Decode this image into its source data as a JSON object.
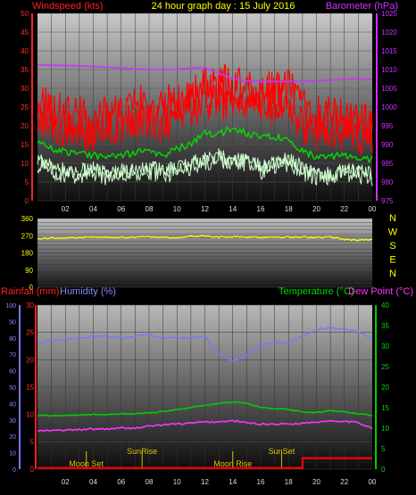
{
  "title": "24 hour graph day : 15 July 2016",
  "colors": {
    "wind_avg": "#00dd00",
    "wind_gust": "#ff0000",
    "wind_low": "#cfffcf",
    "barometer": "#cc33ff",
    "direction": "#ffff00",
    "humidity": "#7777ff",
    "temperature": "#00cc00",
    "dewpoint": "#ff33ff",
    "rainfall": "#ff0000",
    "bg_top": "#c8c8c8",
    "bg_bottom": "#101010"
  },
  "chart_data": [
    {
      "type": "line",
      "panel": "wind",
      "ylabel_left": "Windspeed (kts)",
      "ylabel_right": "Barometer (hPa)",
      "ylim": [
        0,
        50
      ],
      "y2lim": [
        975,
        1025
      ],
      "yticks": [
        "0",
        "5",
        "10",
        "15",
        "20",
        "25",
        "30",
        "35",
        "40",
        "45",
        "50"
      ],
      "y2ticks": [
        "975",
        "980",
        "985",
        "990",
        "995",
        "1000",
        "1005",
        "1010",
        "1015",
        "1020",
        "1025"
      ],
      "x_hours": [
        0,
        1,
        2,
        3,
        4,
        5,
        6,
        7,
        8,
        9,
        10,
        11,
        12,
        13,
        14,
        15,
        16,
        17,
        18,
        19,
        20,
        21,
        22,
        23,
        24
      ],
      "xticks": [
        "02",
        "04",
        "06",
        "08",
        "10",
        "12",
        "14",
        "16",
        "18",
        "20",
        "22",
        "00"
      ],
      "series": [
        {
          "name": "Windspeed (kts) gust",
          "values": [
            27,
            24,
            23,
            22,
            21,
            23,
            24,
            25,
            26,
            24,
            27,
            28,
            30,
            30,
            31,
            30,
            29,
            29,
            30,
            24,
            22,
            23,
            22,
            21,
            20
          ]
        },
        {
          "name": "Windspeed (kts) average",
          "values": [
            16,
            14,
            13,
            13,
            12,
            12,
            12,
            13,
            13,
            12,
            14,
            15,
            18,
            18,
            19,
            18,
            17,
            17,
            17,
            13,
            12,
            12,
            12,
            11,
            11
          ]
        },
        {
          "name": "Windspeed (kts) low",
          "values": [
            10,
            8,
            7,
            7,
            8,
            6,
            7,
            7,
            8,
            7,
            8,
            9,
            10,
            11,
            10,
            10,
            8,
            9,
            10,
            8,
            6,
            6,
            7,
            7,
            6
          ]
        },
        {
          "name": "Barometer (hPa)",
          "values": [
            1011.2,
            1011.2,
            1011.1,
            1011.0,
            1010.8,
            1010.6,
            1010.4,
            1010.2,
            1010.0,
            1010.0,
            1010.1,
            1010.4,
            1010.5,
            1009.0,
            1007.5,
            1007.0,
            1006.8,
            1006.8,
            1006.8,
            1006.9,
            1007.0,
            1007.2,
            1007.4,
            1007.5,
            1007.3
          ]
        }
      ]
    },
    {
      "type": "line",
      "panel": "direction",
      "ylim": [
        0,
        360
      ],
      "yticks": [
        "0",
        "90",
        "180",
        "270",
        "360"
      ],
      "compass": [
        "N",
        "W",
        "S",
        "E",
        "N"
      ],
      "x_hours": [
        0,
        1,
        2,
        3,
        4,
        5,
        6,
        7,
        8,
        9,
        10,
        11,
        12,
        13,
        14,
        15,
        16,
        17,
        18,
        19,
        20,
        21,
        22,
        23,
        24
      ],
      "series": [
        {
          "name": "Wind direction",
          "values": [
            255,
            258,
            258,
            260,
            262,
            262,
            260,
            262,
            264,
            262,
            260,
            266,
            268,
            262,
            265,
            263,
            262,
            264,
            262,
            262,
            262,
            264,
            250,
            245,
            250
          ]
        }
      ]
    },
    {
      "type": "line",
      "panel": "temperature",
      "ylabel_rain": "Rainfall (mm)",
      "ylabel_hum": "Humidity (%)",
      "ylabel_temp": "Temperature (°C)",
      "ylabel_dew": "Dew Point (°C)",
      "rain_ylim": [
        0,
        30
      ],
      "hum_ylim": [
        0,
        100
      ],
      "temp_ylim": [
        0,
        40
      ],
      "rain_ticks": [
        "0",
        "5",
        "10",
        "15",
        "20",
        "25",
        "30"
      ],
      "hum_ticks": [
        "0",
        "10",
        "20",
        "30",
        "40",
        "50",
        "60",
        "70",
        "80",
        "90",
        "100"
      ],
      "temp_ticks": [
        "0",
        "5",
        "10",
        "15",
        "20",
        "25",
        "30",
        "35",
        "40"
      ],
      "x_hours": [
        0,
        1,
        2,
        3,
        4,
        5,
        6,
        7,
        8,
        9,
        10,
        11,
        12,
        13,
        14,
        15,
        16,
        17,
        18,
        19,
        20,
        21,
        22,
        23,
        24
      ],
      "xticks": [
        "02",
        "04",
        "06",
        "08",
        "10",
        "12",
        "14",
        "16",
        "18",
        "20",
        "22",
        "00"
      ],
      "events": [
        {
          "label": "Moon Set",
          "hour": 3.5
        },
        {
          "label": "SunRise",
          "hour": 7.5
        },
        {
          "label": "Moon Rise",
          "hour": 14.0
        },
        {
          "label": "SunSet",
          "hour": 17.5
        }
      ],
      "series": [
        {
          "name": "Humidity (%)",
          "values": [
            77,
            78,
            79,
            80,
            81,
            81,
            80,
            81,
            82,
            80,
            80,
            80,
            81,
            70,
            66,
            69,
            76,
            77,
            77,
            81,
            85,
            86,
            85,
            84,
            79
          ]
        },
        {
          "name": "Temperature (°C)",
          "values": [
            13,
            13,
            13,
            13.2,
            13.3,
            13.3,
            13.5,
            13.5,
            13.7,
            14,
            14.5,
            15,
            15.5,
            16,
            16.3,
            16,
            15,
            14.8,
            14.5,
            14,
            13.8,
            14.3,
            14,
            13.5,
            13
          ]
        },
        {
          "name": "Dew Point (°C)",
          "values": [
            9.3,
            9.4,
            9.5,
            9.6,
            9.8,
            9.8,
            10,
            10,
            10.5,
            10.8,
            11,
            11.2,
            11.5,
            11.5,
            11.8,
            11.3,
            11,
            11,
            11,
            11.2,
            11.5,
            11.8,
            11.7,
            11.3,
            10
          ]
        },
        {
          "name": "Rainfall (mm)",
          "values": [
            0.2,
            0.2,
            0.2,
            0.2,
            0.2,
            0.2,
            0.2,
            0.2,
            0.2,
            0.2,
            0.2,
            0.2,
            0.2,
            0.2,
            0.2,
            0.2,
            0.2,
            0.2,
            0.2,
            2.0,
            2.0,
            2.0,
            2.0,
            2.0,
            2.0
          ]
        }
      ]
    }
  ]
}
